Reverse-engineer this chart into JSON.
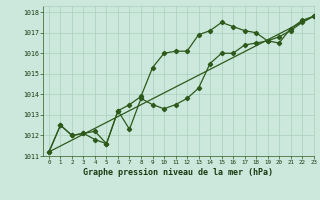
{
  "line1_x": [
    0,
    1,
    2,
    3,
    4,
    5,
    6,
    7,
    8,
    9,
    10,
    11,
    12,
    13,
    14,
    15,
    16,
    17,
    18,
    19,
    20,
    21,
    22,
    23
  ],
  "line1_y": [
    1011.2,
    1012.5,
    1012.0,
    1012.1,
    1011.8,
    1011.6,
    1013.2,
    1013.5,
    1013.9,
    1015.3,
    1016.0,
    1016.1,
    1016.1,
    1016.9,
    1017.1,
    1017.5,
    1017.3,
    1017.1,
    1017.0,
    1016.6,
    1016.5,
    1017.2,
    1017.6,
    1017.8
  ],
  "line2_x": [
    0,
    1,
    2,
    3,
    4,
    5,
    6,
    7,
    8,
    9,
    10,
    11,
    12,
    13,
    14,
    15,
    16,
    17,
    18,
    19,
    20,
    21,
    22,
    23
  ],
  "line2_y": [
    1011.2,
    1012.5,
    1012.0,
    1012.1,
    1012.2,
    1011.6,
    1013.2,
    1012.3,
    1013.8,
    1013.5,
    1013.3,
    1013.5,
    1013.8,
    1014.3,
    1015.5,
    1016.0,
    1016.0,
    1016.4,
    1016.5,
    1016.6,
    1016.8,
    1017.1,
    1017.5,
    1017.8
  ],
  "line3_x": [
    0,
    23
  ],
  "line3_y": [
    1011.2,
    1017.8
  ],
  "line_color": "#2d5a1b",
  "bg_color": "#cce8dc",
  "grid_color": "#aacfbc",
  "xlabel": "Graphe pression niveau de la mer (hPa)",
  "xlabel_color": "#1a3a10",
  "xlim": [
    -0.5,
    23
  ],
  "ylim": [
    1011,
    1018.3
  ],
  "yticks": [
    1011,
    1012,
    1013,
    1014,
    1015,
    1016,
    1017,
    1018
  ],
  "xticks": [
    0,
    1,
    2,
    3,
    4,
    5,
    6,
    7,
    8,
    9,
    10,
    11,
    12,
    13,
    14,
    15,
    16,
    17,
    18,
    19,
    20,
    21,
    22,
    23
  ],
  "marker": "D",
  "marker_size": 2.2,
  "line_width": 0.9
}
